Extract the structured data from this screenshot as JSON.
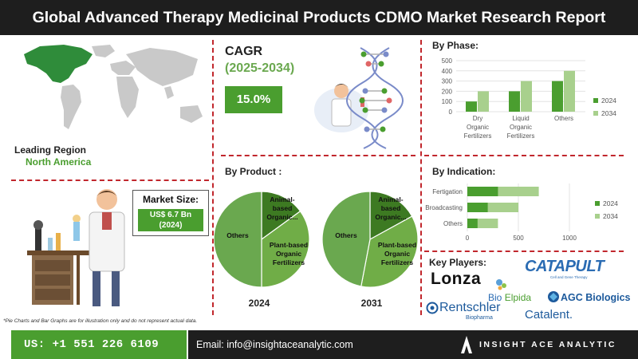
{
  "header": {
    "title": "Global Advanced Therapy Medicinal Products CDMO Market Research Report"
  },
  "leading_region": {
    "label": "Leading Region",
    "value": "North America"
  },
  "market_size": {
    "label": "Market Size:",
    "value_line1": "US$ 6.7 Bn",
    "value_line2": "(2024)"
  },
  "cagr": {
    "label": "CAGR",
    "years": "(2025-2034)",
    "value": "15.0%"
  },
  "by_product": {
    "title": "By Product :",
    "year_a": "2024",
    "year_b": "2031"
  },
  "by_phase": {
    "title": "By Phase:"
  },
  "by_indication": {
    "title": "By Indication:"
  },
  "key_players": {
    "title": "Key Players:",
    "logos": [
      "Lonza",
      "CATAPULT",
      "Cell and Gene Therapy",
      "Bio",
      "Elpida",
      "AGC Biologics",
      "Rentschler",
      "Biopharma",
      "Catalent."
    ]
  },
  "footer": {
    "note": "*Pie Charts and Bar Graphs are for illustration only and do not represent actual data.",
    "phone": "US: +1 551 226 6109",
    "email": "Email: info@insightaceanalytic.com",
    "brand": "INSIGHT ACE ANALYTIC"
  },
  "colors": {
    "dark_green": "#4a9e2f",
    "light_green": "#a8d08d",
    "accent_red": "#c1272d",
    "header_bg": "#1e1e1e",
    "pie_green": "#70ad47",
    "pie_dark": "#3d7a22",
    "pie_others": "#6aa84f"
  },
  "chart_data": [
    {
      "type": "pie",
      "title": "2024",
      "categories": [
        "Animal-based Organic...",
        "Plant-based Organic Fertilizers",
        "Others"
      ],
      "values": [
        15,
        35,
        50
      ]
    },
    {
      "type": "pie",
      "title": "2031",
      "categories": [
        "Animal-based Organic...",
        "Plant-based Organic Fertilizers",
        "Others"
      ],
      "values": [
        17,
        36,
        47
      ]
    },
    {
      "type": "bar",
      "title": "By Phase:",
      "categories": [
        "Dry Organic Fertilizers",
        "Liquid Organic Fertilizers",
        "Others"
      ],
      "series": [
        {
          "name": "2024",
          "values": [
            100,
            200,
            300
          ]
        },
        {
          "name": "2034",
          "values": [
            200,
            300,
            400
          ]
        }
      ],
      "ylim": [
        0,
        500
      ],
      "yticks": [
        0,
        100,
        200,
        300,
        400,
        500
      ],
      "legend": "right",
      "grid": true
    },
    {
      "type": "bar",
      "orientation": "horizontal",
      "title": "By Indication:",
      "categories": [
        "Fertigation",
        "Broadcasting",
        "Others"
      ],
      "series": [
        {
          "name": "2024",
          "values": [
            300,
            200,
            100
          ]
        },
        {
          "name": "2034",
          "values": [
            700,
            500,
            300
          ]
        }
      ],
      "xlim": [
        0,
        1000
      ],
      "xticks": [
        0,
        500,
        1000
      ],
      "legend": "right",
      "grid": true
    }
  ]
}
